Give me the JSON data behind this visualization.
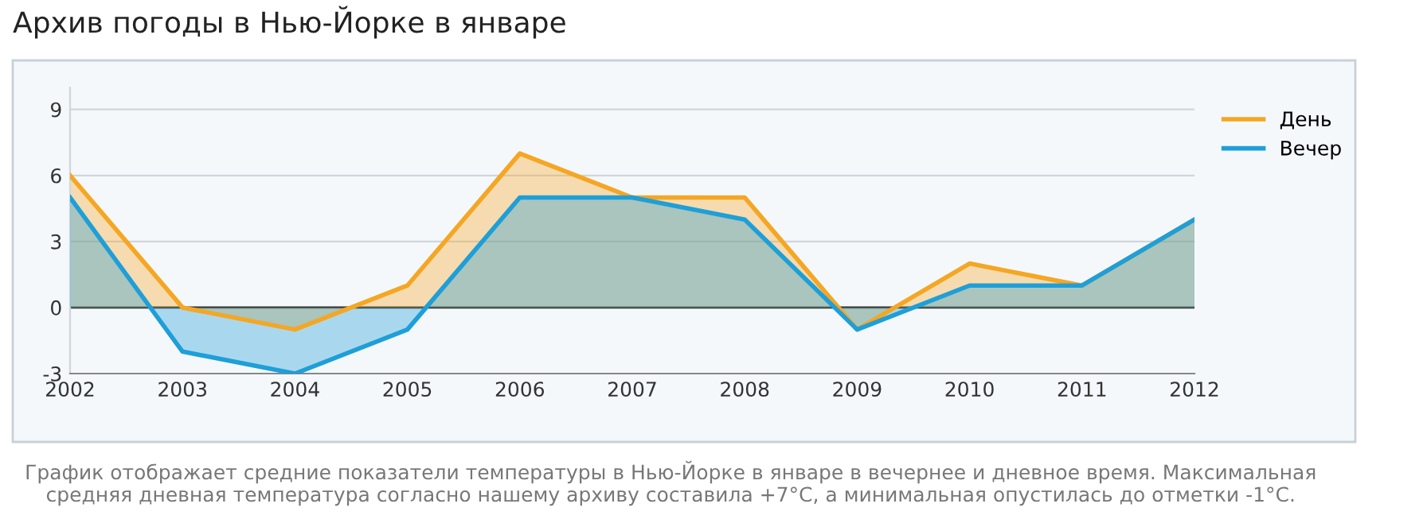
{
  "chart_data": {
    "type": "area",
    "title": "Архив погоды в Нью-Йорке в январе",
    "categories": [
      "2002",
      "2003",
      "2004",
      "2005",
      "2006",
      "2007",
      "2008",
      "2009",
      "2010",
      "2011",
      "2012"
    ],
    "series": [
      {
        "name": "День",
        "color": "#f5a623",
        "values": [
          6,
          0,
          -1,
          1,
          7,
          5,
          5,
          -1,
          2,
          1,
          4
        ]
      },
      {
        "name": "Вечер",
        "color": "#1e9fd8",
        "values": [
          5,
          -2,
          -3,
          -1,
          5,
          5,
          4,
          -1,
          1,
          1,
          4
        ]
      }
    ],
    "ylim": [
      -3,
      10
    ],
    "yticks": [
      -3,
      0,
      3,
      6,
      9
    ],
    "grid": "y",
    "legend": "top right",
    "ref_lines": [
      {
        "axis": "y",
        "value": 0,
        "color": "#333333"
      }
    ],
    "annotations": [
      "График отображает средние показатели температуры в Нью-Йорке в январе в вечернее и дневное время. Максимальная средняя дневная температура согласно нашему архиву составила +7°C, а минимальная опустилась до отметки -1°C."
    ]
  }
}
